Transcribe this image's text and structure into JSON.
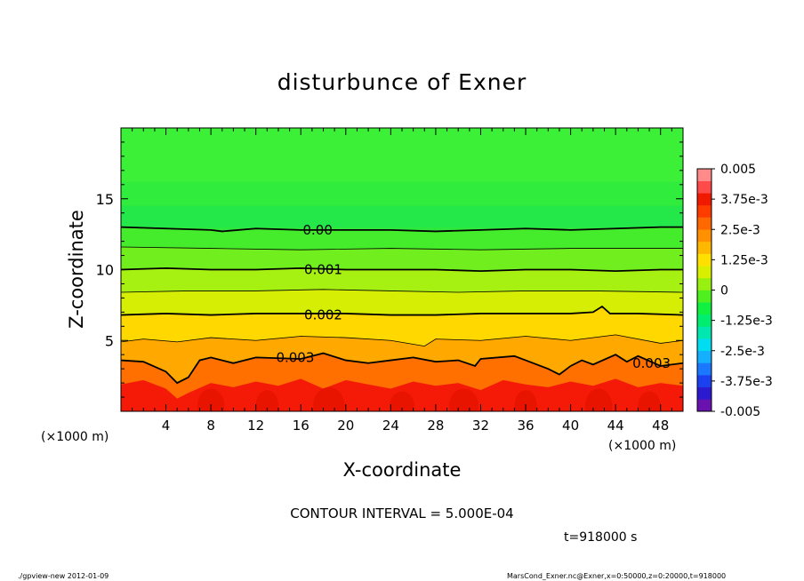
{
  "chart_data": {
    "type": "heatmap",
    "title": "disturbunce of Exner",
    "xlabel": "X-coordinate",
    "ylabel": "Z-coordinate",
    "x_unit_left": "(×1000 m)",
    "x_unit_right": "(×1000 m)",
    "xlim": [
      0,
      50
    ],
    "ylim": [
      0,
      20
    ],
    "x_ticks": [
      4,
      8,
      12,
      16,
      20,
      24,
      28,
      32,
      36,
      40,
      44,
      48
    ],
    "y_ticks": [
      5,
      10,
      15
    ],
    "contour_interval_text": "CONTOUR INTERVAL = 5.000E-04",
    "time_text": "t=918000 s",
    "contour_labels": [
      {
        "text": "0.00",
        "x": 17.5,
        "y": 12.8
      },
      {
        "text": "0.001",
        "x": 18.0,
        "y": 10.0
      },
      {
        "text": "0.002",
        "x": 18.0,
        "y": 6.8
      },
      {
        "text": "0.003",
        "x": 15.5,
        "y": 3.8
      },
      {
        "text": "0.003",
        "x": 47.2,
        "y": 3.4
      }
    ],
    "contours": [
      {
        "level": 0.0,
        "bold": true,
        "x": [
          0,
          4,
          8,
          9,
          12,
          16,
          20,
          24,
          28,
          32,
          36,
          40,
          44,
          48,
          50
        ],
        "y": [
          13.0,
          12.9,
          12.8,
          12.7,
          12.9,
          12.8,
          12.8,
          12.8,
          12.7,
          12.8,
          12.9,
          12.8,
          12.9,
          13.0,
          13.0
        ]
      },
      {
        "level": 0.0005,
        "bold": false,
        "x": [
          0,
          8,
          16,
          24,
          32,
          40,
          48,
          50
        ],
        "y": [
          11.6,
          11.5,
          11.4,
          11.5,
          11.4,
          11.5,
          11.5,
          11.5
        ]
      },
      {
        "level": 0.001,
        "bold": true,
        "x": [
          0,
          4,
          8,
          12,
          16,
          20,
          24,
          28,
          32,
          36,
          40,
          44,
          48,
          50
        ],
        "y": [
          10.0,
          10.1,
          10.0,
          10.0,
          10.1,
          10.0,
          10.0,
          10.0,
          9.9,
          10.0,
          10.0,
          9.9,
          10.0,
          10.0
        ]
      },
      {
        "level": 0.0015,
        "bold": false,
        "x": [
          0,
          6,
          12,
          18,
          24,
          30,
          36,
          42,
          50
        ],
        "y": [
          8.4,
          8.5,
          8.5,
          8.6,
          8.5,
          8.4,
          8.5,
          8.5,
          8.4
        ]
      },
      {
        "level": 0.002,
        "bold": true,
        "x": [
          0,
          4,
          8,
          12,
          16,
          20,
          24,
          28,
          32,
          36,
          40,
          42,
          42.8,
          43.5,
          46,
          50
        ],
        "y": [
          6.8,
          6.9,
          6.8,
          6.9,
          6.9,
          6.9,
          6.8,
          6.8,
          6.9,
          6.9,
          6.9,
          7.0,
          7.4,
          6.9,
          6.9,
          6.8
        ]
      },
      {
        "level": 0.0025,
        "bold": false,
        "x": [
          0,
          2,
          5,
          8,
          12,
          16,
          20,
          24,
          27,
          28,
          32,
          36,
          40,
          44,
          48,
          50
        ],
        "y": [
          4.9,
          5.1,
          4.9,
          5.2,
          5.0,
          5.3,
          5.2,
          5.0,
          4.6,
          5.1,
          5.0,
          5.3,
          5.0,
          5.4,
          4.8,
          5.0
        ]
      },
      {
        "level": 0.003,
        "bold": true,
        "x": [
          0,
          2,
          4,
          5,
          6,
          7,
          8,
          10,
          12,
          16,
          18,
          20,
          22,
          24,
          26,
          28,
          30,
          31.5,
          32,
          35,
          36,
          38,
          39,
          40,
          41,
          42,
          44,
          45,
          46,
          48,
          50
        ],
        "y": [
          3.6,
          3.5,
          2.8,
          2.0,
          2.4,
          3.6,
          3.8,
          3.4,
          3.8,
          3.7,
          4.1,
          3.6,
          3.4,
          3.6,
          3.8,
          3.5,
          3.6,
          3.2,
          3.7,
          3.9,
          3.6,
          3.0,
          2.6,
          3.2,
          3.6,
          3.3,
          4.0,
          3.5,
          3.9,
          3.2,
          3.4
        ]
      }
    ],
    "colorbar": {
      "tick_labels": [
        "0.005",
        "3.75e-3",
        "2.5e-3",
        "1.25e-3",
        "0",
        "-1.25e-3",
        "-2.5e-3",
        "-3.75e-3",
        "-0.005"
      ],
      "colors": [
        "#6a12b0",
        "#2b1ad0",
        "#1a40f0",
        "#1a78ff",
        "#14b0ff",
        "#00dcf0",
        "#00e8b0",
        "#00ee70",
        "#10f040",
        "#50f020",
        "#98f010",
        "#d8f000",
        "#ffe000",
        "#ffb800",
        "#ff9000",
        "#ff6800",
        "#ff3c00",
        "#f01a00",
        "#ff4a4a",
        "#ff8a8a"
      ]
    },
    "field_description_levels": [
      -0.005,
      0.005
    ]
  },
  "footer": {
    "left": "./gpview-new  2012-01-09",
    "right": "MarsCond_Exner.nc@Exner,x=0:50000,z=0:20000,t=918000"
  }
}
